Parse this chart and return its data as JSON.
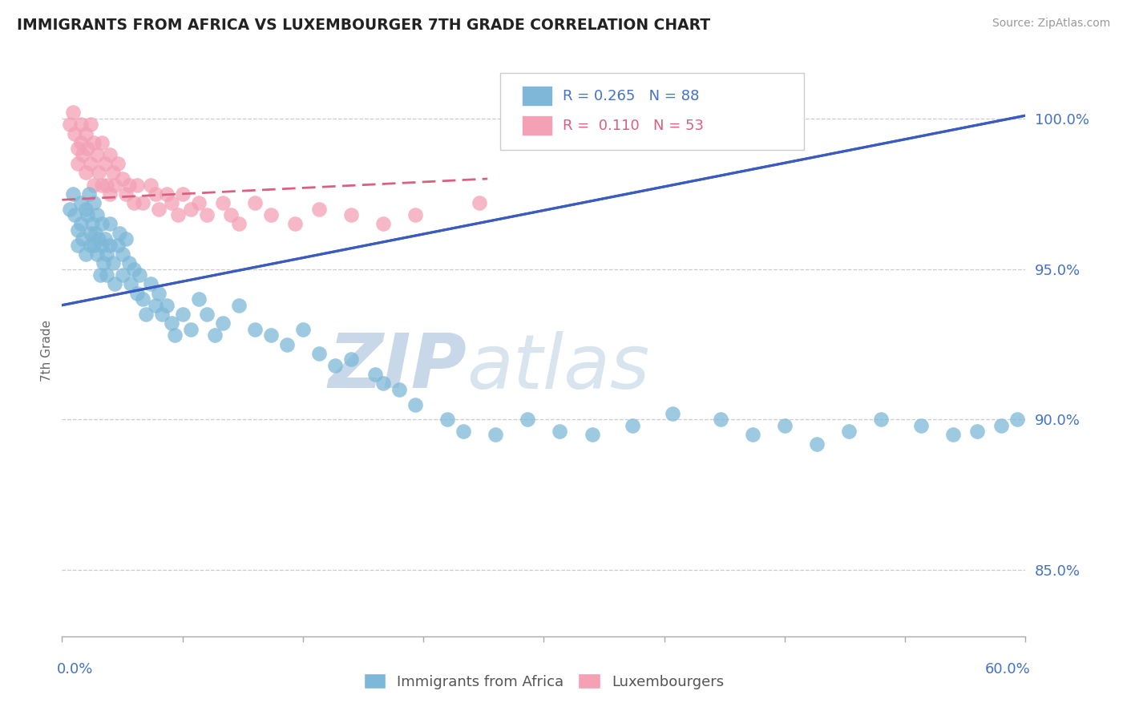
{
  "title": "IMMIGRANTS FROM AFRICA VS LUXEMBOURGER 7TH GRADE CORRELATION CHART",
  "source": "Source: ZipAtlas.com",
  "ylabel": "7th Grade",
  "ytick_labels": [
    "85.0%",
    "90.0%",
    "95.0%",
    "100.0%"
  ],
  "ytick_values": [
    0.85,
    0.9,
    0.95,
    1.0
  ],
  "xlim": [
    0.0,
    0.6
  ],
  "ylim": [
    0.828,
    1.018
  ],
  "legend_blue_label": "Immigrants from Africa",
  "legend_pink_label": "Luxembourgers",
  "R_blue": 0.265,
  "N_blue": 88,
  "R_pink": 0.11,
  "N_pink": 53,
  "blue_color": "#7db8d8",
  "pink_color": "#f4a0b5",
  "blue_line_color": "#3a5bbf",
  "pink_line_color": "#d96080",
  "watermark_zip": "ZIP",
  "watermark_atlas": "atlas",
  "blue_line_x": [
    0.0,
    0.6
  ],
  "blue_line_y": [
    0.938,
    1.001
  ],
  "pink_line_x": [
    0.0,
    0.265
  ],
  "pink_line_y": [
    0.973,
    0.98
  ],
  "blue_dots_x": [
    0.005,
    0.007,
    0.008,
    0.01,
    0.01,
    0.012,
    0.012,
    0.013,
    0.015,
    0.015,
    0.016,
    0.017,
    0.018,
    0.018,
    0.019,
    0.02,
    0.02,
    0.021,
    0.022,
    0.022,
    0.023,
    0.024,
    0.025,
    0.025,
    0.026,
    0.027,
    0.028,
    0.028,
    0.03,
    0.03,
    0.032,
    0.033,
    0.035,
    0.036,
    0.038,
    0.038,
    0.04,
    0.042,
    0.043,
    0.045,
    0.047,
    0.048,
    0.05,
    0.052,
    0.055,
    0.058,
    0.06,
    0.062,
    0.065,
    0.068,
    0.07,
    0.075,
    0.08,
    0.085,
    0.09,
    0.095,
    0.1,
    0.11,
    0.12,
    0.13,
    0.14,
    0.15,
    0.16,
    0.17,
    0.18,
    0.195,
    0.2,
    0.21,
    0.22,
    0.24,
    0.25,
    0.27,
    0.29,
    0.31,
    0.33,
    0.355,
    0.38,
    0.41,
    0.43,
    0.45,
    0.47,
    0.49,
    0.51,
    0.535,
    0.555,
    0.57,
    0.585,
    0.595
  ],
  "blue_dots_y": [
    0.97,
    0.975,
    0.968,
    0.963,
    0.958,
    0.972,
    0.965,
    0.96,
    0.97,
    0.955,
    0.968,
    0.975,
    0.962,
    0.958,
    0.965,
    0.972,
    0.958,
    0.962,
    0.968,
    0.955,
    0.96,
    0.948,
    0.958,
    0.965,
    0.952,
    0.96,
    0.955,
    0.948,
    0.965,
    0.958,
    0.952,
    0.945,
    0.958,
    0.962,
    0.955,
    0.948,
    0.96,
    0.952,
    0.945,
    0.95,
    0.942,
    0.948,
    0.94,
    0.935,
    0.945,
    0.938,
    0.942,
    0.935,
    0.938,
    0.932,
    0.928,
    0.935,
    0.93,
    0.94,
    0.935,
    0.928,
    0.932,
    0.938,
    0.93,
    0.928,
    0.925,
    0.93,
    0.922,
    0.918,
    0.92,
    0.915,
    0.912,
    0.91,
    0.905,
    0.9,
    0.896,
    0.895,
    0.9,
    0.896,
    0.895,
    0.898,
    0.902,
    0.9,
    0.895,
    0.898,
    0.892,
    0.896,
    0.9,
    0.898,
    0.895,
    0.896,
    0.898,
    0.9
  ],
  "pink_dots_x": [
    0.005,
    0.007,
    0.008,
    0.01,
    0.01,
    0.012,
    0.012,
    0.013,
    0.015,
    0.015,
    0.016,
    0.018,
    0.018,
    0.02,
    0.02,
    0.022,
    0.023,
    0.025,
    0.025,
    0.027,
    0.028,
    0.03,
    0.03,
    0.032,
    0.033,
    0.035,
    0.038,
    0.04,
    0.042,
    0.045,
    0.047,
    0.05,
    0.055,
    0.058,
    0.06,
    0.065,
    0.068,
    0.072,
    0.075,
    0.08,
    0.085,
    0.09,
    0.1,
    0.105,
    0.11,
    0.12,
    0.13,
    0.145,
    0.16,
    0.18,
    0.2,
    0.22,
    0.26
  ],
  "pink_dots_y": [
    0.998,
    1.002,
    0.995,
    0.99,
    0.985,
    0.998,
    0.992,
    0.988,
    0.995,
    0.982,
    0.99,
    0.998,
    0.985,
    0.992,
    0.978,
    0.988,
    0.982,
    0.992,
    0.978,
    0.985,
    0.978,
    0.988,
    0.975,
    0.982,
    0.978,
    0.985,
    0.98,
    0.975,
    0.978,
    0.972,
    0.978,
    0.972,
    0.978,
    0.975,
    0.97,
    0.975,
    0.972,
    0.968,
    0.975,
    0.97,
    0.972,
    0.968,
    0.972,
    0.968,
    0.965,
    0.972,
    0.968,
    0.965,
    0.97,
    0.968,
    0.965,
    0.968,
    0.972
  ]
}
